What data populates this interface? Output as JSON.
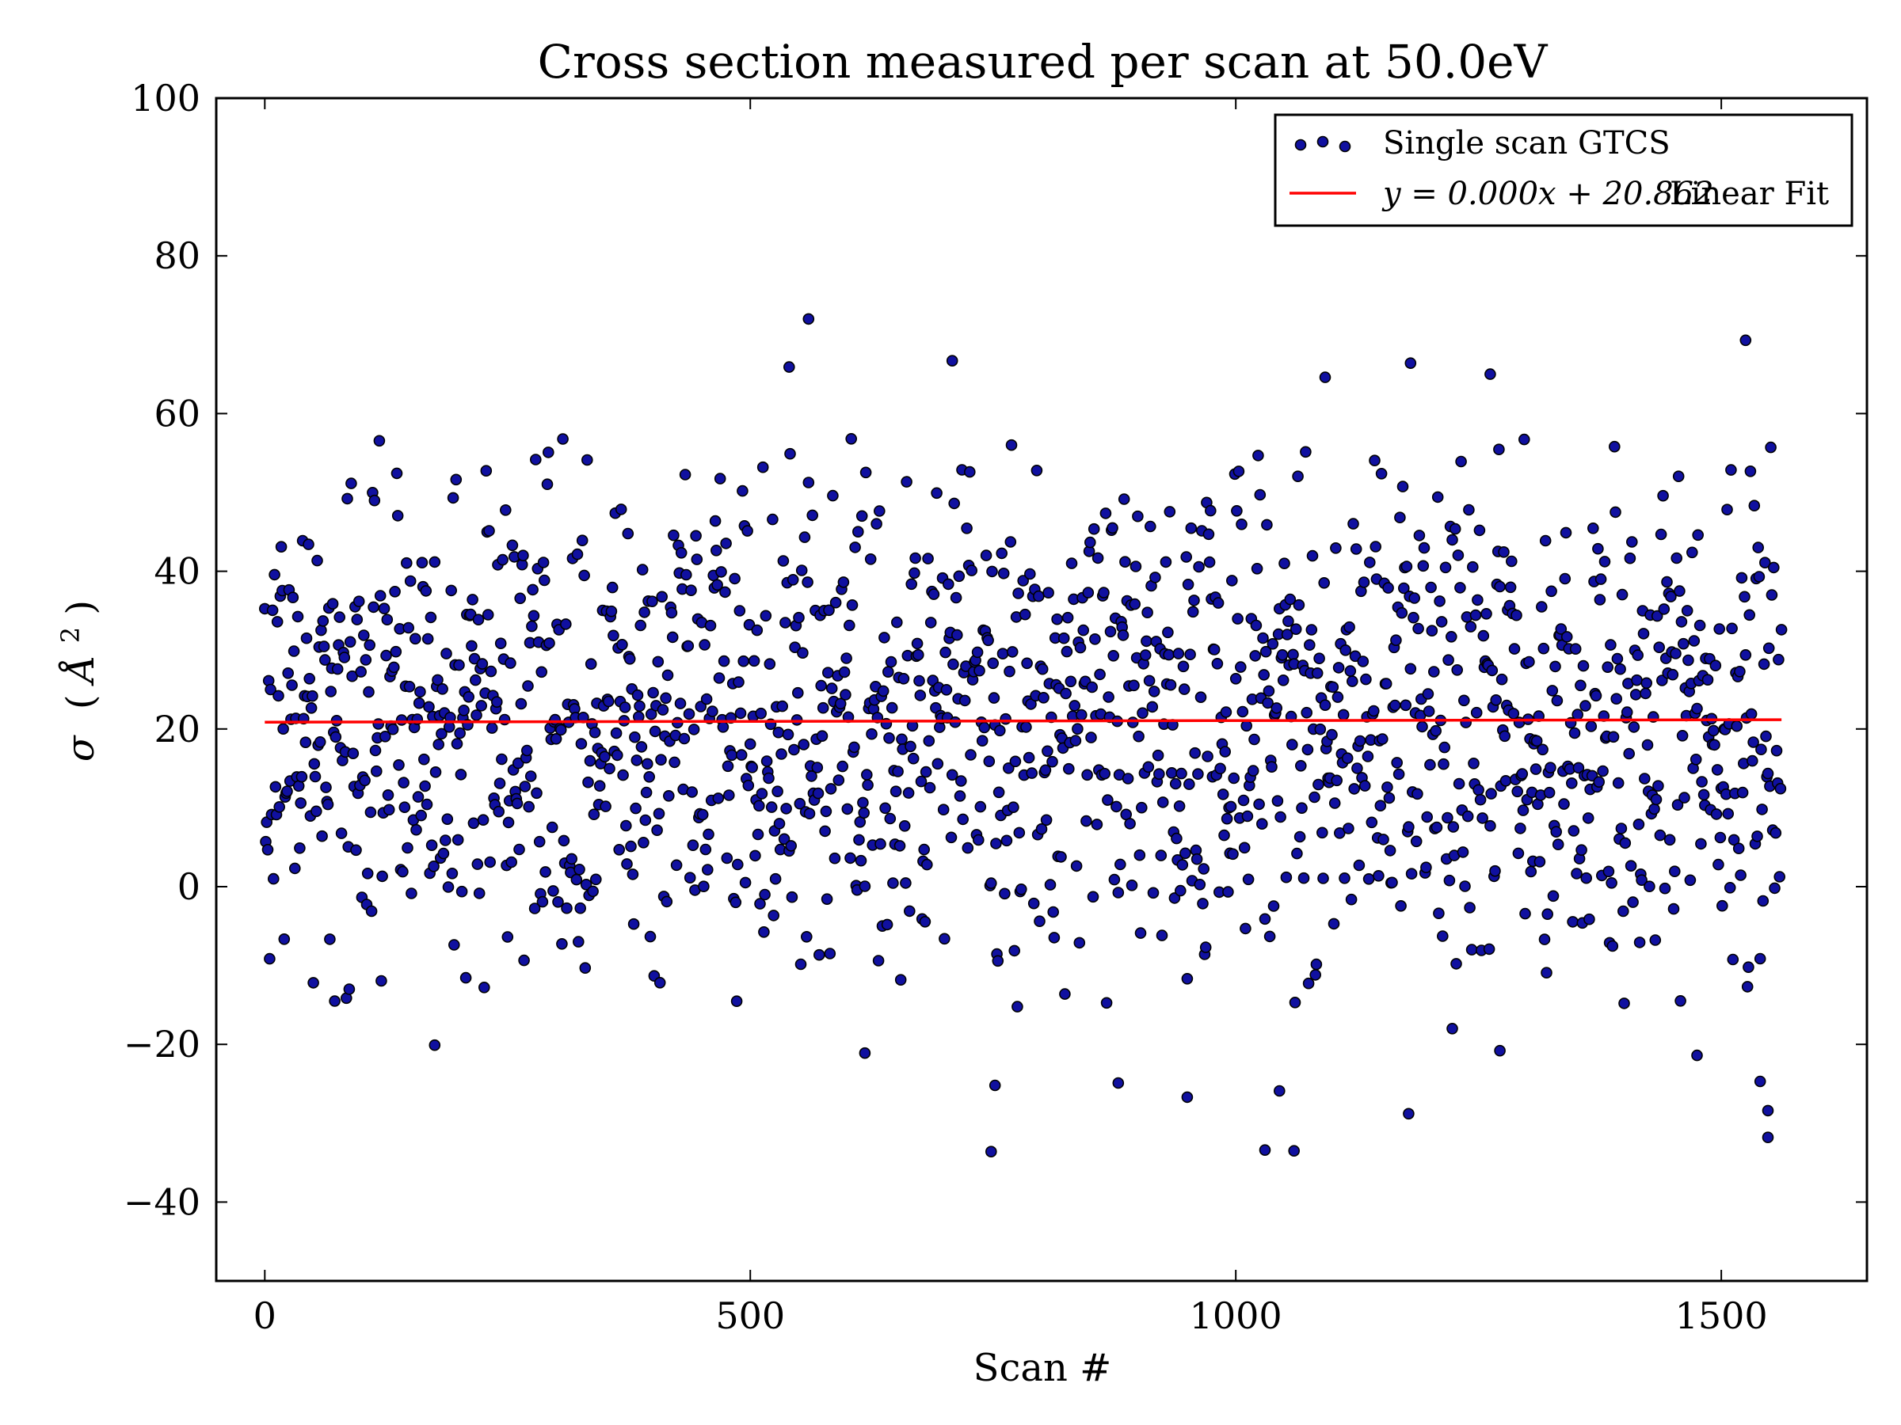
{
  "chart_data": {
    "type": "scatter",
    "title": "Cross section measured per scan at 50.0eV",
    "xlabel": "Scan #",
    "ylabel": "σ  (Å²)",
    "ylabel_parts": {
      "sigma": "σ",
      "lparen": "(",
      "unit": "Å",
      "exp": "2",
      "rparen": ")"
    },
    "xlim": [
      -50,
      1650
    ],
    "ylim": [
      -50,
      100
    ],
    "xticks": [
      0,
      500,
      1000,
      1500
    ],
    "yticks": [
      -40,
      -20,
      0,
      20,
      40,
      60,
      80,
      100
    ],
    "ytick_labels": [
      "−40",
      "−20",
      "0",
      "20",
      "40",
      "60",
      "80",
      "100"
    ],
    "grid": false,
    "legend_position": "top-right",
    "series": [
      {
        "name": "Single scan GTCS",
        "kind": "scatter",
        "marker_fill": "#1010a0",
        "marker_edge": "#000000",
        "n_points": 1563,
        "x_start": 0,
        "x_end": 1562,
        "center": 20.86,
        "spread": 15.5,
        "notable_points": [
          [
            560,
            72.0
          ],
          [
            540,
            65.9
          ],
          [
            708,
            66.7
          ],
          [
            1525,
            69.3
          ],
          [
            1180,
            66.4
          ],
          [
            1092,
            64.6
          ],
          [
            1262,
            65.0
          ],
          [
            748,
            -33.6
          ],
          [
            1030,
            -33.4
          ],
          [
            1060,
            -33.5
          ],
          [
            1548,
            -31.8
          ],
          [
            1548,
            -28.4
          ],
          [
            1178,
            -28.8
          ],
          [
            950,
            -26.7
          ],
          [
            752,
            -25.2
          ],
          [
            1045,
            -25.9
          ],
          [
            879,
            -24.9
          ],
          [
            1540,
            -24.7
          ],
          [
            175,
            -20.1
          ],
          [
            618,
            -21.1
          ],
          [
            1223,
            -18.0
          ],
          [
            1272,
            -20.8
          ],
          [
            1475,
            -21.4
          ]
        ]
      },
      {
        "name": "Linear Fit",
        "kind": "line",
        "color": "#ff0000",
        "slope": 0.0002,
        "intercept": 20.862,
        "x_range": [
          0,
          1562
        ],
        "label_math": "y = 0.000x + 20.862",
        "label_text": "Linear Fit"
      }
    ]
  }
}
